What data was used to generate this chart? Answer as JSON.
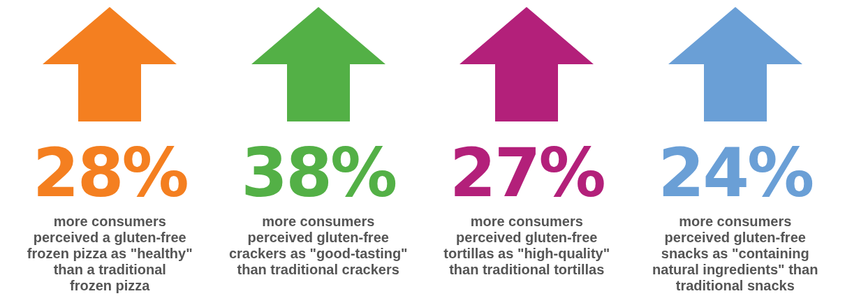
{
  "chart_data": {
    "type": "other",
    "categories": [
      "more consumers\nperceived a gluten-free\nfrozen pizza as \"healthy\"\nthan a traditional\nfrozen pizza",
      "more consumers\nperceived gluten-free\ncrackers as \"good-tasting\"\nthan traditional crackers",
      "more consumers\nperceived gluten-free\ntortillas as \"high-quality\"\nthan traditional tortillas",
      "more consumers\nperceived gluten-free\nsnacks as \"containing\nnatural ingredients\" than\ntraditional snacks"
    ],
    "values": [
      28,
      38,
      27,
      24
    ],
    "value_labels": [
      "28%",
      "38%",
      "27%",
      "24%"
    ],
    "colors": [
      "#f47f20",
      "#53b046",
      "#b3207a",
      "#6a9fd6"
    ]
  }
}
